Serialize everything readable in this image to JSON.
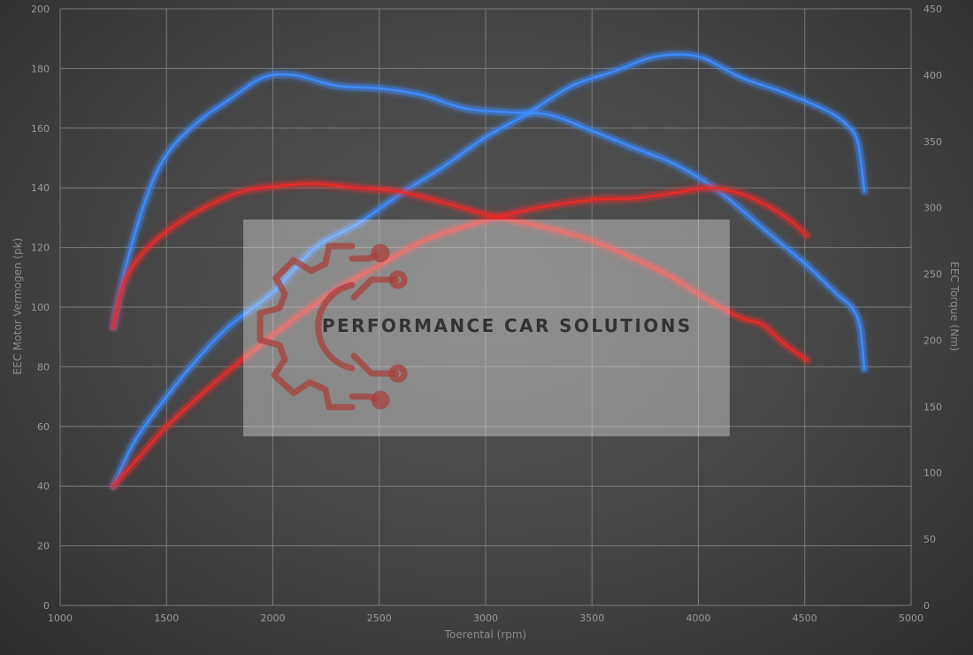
{
  "chart_data": {
    "type": "line",
    "xlabel": "Toerental (rpm)",
    "ylabel_left": "EEC Motor Vermogen (pk)",
    "ylabel_right": "EEC Torque (Nm)",
    "xlim": [
      1000,
      5000
    ],
    "ylim_left": [
      0,
      200
    ],
    "ylim_right": [
      0,
      450
    ],
    "x_ticks": [
      1000,
      1500,
      2000,
      2500,
      3000,
      3500,
      4000,
      4500,
      5000
    ],
    "y_left_ticks": [
      0,
      20,
      40,
      60,
      80,
      100,
      120,
      140,
      160,
      180,
      200
    ],
    "y_right_ticks": [
      0,
      50,
      100,
      150,
      200,
      250,
      300,
      350,
      400,
      450
    ],
    "grid": true,
    "series": [
      {
        "axis": "left",
        "color": "#3d8bff",
        "points": [
          [
            1250,
            40
          ],
          [
            1350,
            55
          ],
          [
            1500,
            70
          ],
          [
            1650,
            83
          ],
          [
            1800,
            94
          ],
          [
            2000,
            105
          ],
          [
            2200,
            120
          ],
          [
            2400,
            128
          ],
          [
            2600,
            138
          ],
          [
            2800,
            147
          ],
          [
            3000,
            157
          ],
          [
            3200,
            165
          ],
          [
            3400,
            174
          ],
          [
            3600,
            179
          ],
          [
            3800,
            184
          ],
          [
            4000,
            184
          ],
          [
            4200,
            177
          ],
          [
            4400,
            172
          ],
          [
            4600,
            166
          ],
          [
            4700,
            161
          ],
          [
            4750,
            155
          ],
          [
            4780,
            139
          ]
        ]
      },
      {
        "axis": "right",
        "color": "#3d8bff",
        "points": [
          [
            1250,
            210
          ],
          [
            1300,
            250
          ],
          [
            1400,
            305
          ],
          [
            1500,
            340
          ],
          [
            1650,
            365
          ],
          [
            1800,
            382
          ],
          [
            1950,
            398
          ],
          [
            2100,
            400
          ],
          [
            2300,
            392
          ],
          [
            2500,
            390
          ],
          [
            2700,
            385
          ],
          [
            2900,
            375
          ],
          [
            3100,
            372
          ],
          [
            3300,
            370
          ],
          [
            3500,
            358
          ],
          [
            3700,
            345
          ],
          [
            3900,
            332
          ],
          [
            4100,
            312
          ],
          [
            4300,
            285
          ],
          [
            4500,
            258
          ],
          [
            4650,
            235
          ],
          [
            4720,
            225
          ],
          [
            4760,
            210
          ],
          [
            4780,
            178
          ]
        ]
      },
      {
        "axis": "left",
        "color": "#e82a2a",
        "points": [
          [
            1250,
            40
          ],
          [
            1350,
            48
          ],
          [
            1500,
            60
          ],
          [
            1700,
            73
          ],
          [
            1900,
            85
          ],
          [
            2100,
            96
          ],
          [
            2300,
            106
          ],
          [
            2500,
            114
          ],
          [
            2700,
            122
          ],
          [
            2900,
            127
          ],
          [
            3100,
            131
          ],
          [
            3300,
            134
          ],
          [
            3500,
            136
          ],
          [
            3700,
            136.5
          ],
          [
            3900,
            138.5
          ],
          [
            4050,
            140
          ],
          [
            4200,
            138
          ],
          [
            4350,
            133
          ],
          [
            4450,
            128
          ],
          [
            4510,
            124
          ]
        ]
      },
      {
        "axis": "right",
        "color": "#e82a2a",
        "points": [
          [
            1250,
            210
          ],
          [
            1300,
            243
          ],
          [
            1400,
            268
          ],
          [
            1550,
            288
          ],
          [
            1700,
            302
          ],
          [
            1850,
            312
          ],
          [
            2000,
            316
          ],
          [
            2200,
            318
          ],
          [
            2400,
            315
          ],
          [
            2600,
            312
          ],
          [
            2800,
            304
          ],
          [
            3000,
            295
          ],
          [
            3200,
            288
          ],
          [
            3450,
            278
          ],
          [
            3650,
            265
          ],
          [
            3850,
            250
          ],
          [
            4050,
            230
          ],
          [
            4200,
            217
          ],
          [
            4300,
            212
          ],
          [
            4400,
            198
          ],
          [
            4510,
            185
          ]
        ]
      }
    ]
  },
  "watermark": {
    "brand_text": "PERFORMANCE CAR SOLUTIONS"
  }
}
